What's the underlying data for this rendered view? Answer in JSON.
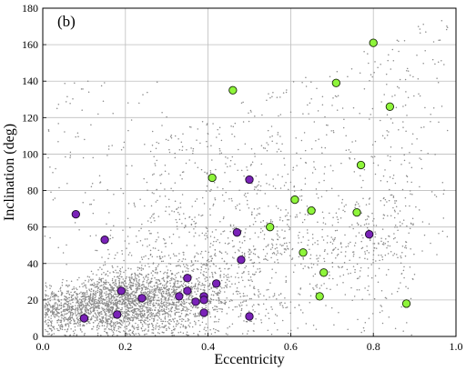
{
  "chart_data": {
    "type": "scatter",
    "panel_label": "(b)",
    "xlabel": "Eccentricity",
    "ylabel": "Inclination  (deg)",
    "xlim": [
      0.0,
      1.0
    ],
    "ylim": [
      0,
      180
    ],
    "x_ticks": [
      "0.0",
      "0.2",
      "0.4",
      "0.6",
      "0.8",
      "1.0"
    ],
    "y_ticks": [
      "0",
      "20",
      "40",
      "60",
      "80",
      "100",
      "120",
      "140",
      "160",
      "180"
    ],
    "grid": true,
    "background_population": {
      "color": "#8a8a8a",
      "description": "dense cloud of small gray dots, concentrated at low eccentricity and low inclination"
    },
    "series": [
      {
        "color": "#7a22b8",
        "edge_color": "#1a0a2a",
        "points": [
          {
            "x": 0.08,
            "y": 67
          },
          {
            "x": 0.1,
            "y": 10
          },
          {
            "x": 0.15,
            "y": 53
          },
          {
            "x": 0.18,
            "y": 12
          },
          {
            "x": 0.19,
            "y": 25
          },
          {
            "x": 0.24,
            "y": 21
          },
          {
            "x": 0.33,
            "y": 22
          },
          {
            "x": 0.35,
            "y": 25
          },
          {
            "x": 0.35,
            "y": 32
          },
          {
            "x": 0.37,
            "y": 19
          },
          {
            "x": 0.39,
            "y": 22
          },
          {
            "x": 0.39,
            "y": 20
          },
          {
            "x": 0.39,
            "y": 13
          },
          {
            "x": 0.42,
            "y": 29
          },
          {
            "x": 0.47,
            "y": 57
          },
          {
            "x": 0.48,
            "y": 42
          },
          {
            "x": 0.5,
            "y": 86
          },
          {
            "x": 0.5,
            "y": 11
          },
          {
            "x": 0.79,
            "y": 56
          }
        ]
      },
      {
        "color": "#8ef53a",
        "edge_color": "#1a2a0a",
        "points": [
          {
            "x": 0.46,
            "y": 135
          },
          {
            "x": 0.41,
            "y": 87
          },
          {
            "x": 0.55,
            "y": 60
          },
          {
            "x": 0.61,
            "y": 75
          },
          {
            "x": 0.63,
            "y": 46
          },
          {
            "x": 0.65,
            "y": 69
          },
          {
            "x": 0.67,
            "y": 22
          },
          {
            "x": 0.68,
            "y": 35
          },
          {
            "x": 0.71,
            "y": 139
          },
          {
            "x": 0.76,
            "y": 68
          },
          {
            "x": 0.77,
            "y": 94
          },
          {
            "x": 0.8,
            "y": 161
          },
          {
            "x": 0.84,
            "y": 126
          },
          {
            "x": 0.88,
            "y": 18
          }
        ]
      }
    ]
  }
}
